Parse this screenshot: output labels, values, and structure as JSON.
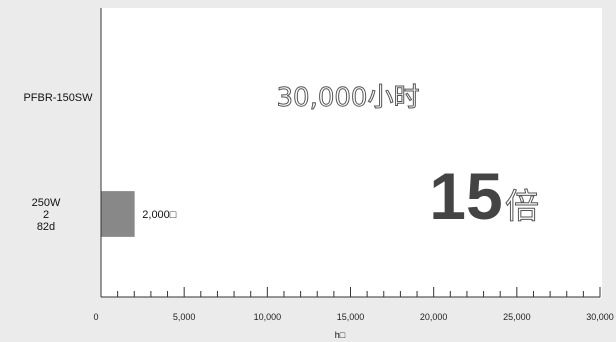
{
  "chart_data": {
    "type": "bar",
    "orientation": "horizontal",
    "categories": [
      [
        "PFBR-150SW"
      ],
      [
        "250W",
        "2",
        "82d"
      ]
    ],
    "values": [
      30000,
      2000
    ],
    "data_labels": [
      "30,000小时",
      "2,000□"
    ],
    "annotation": {
      "number": "15",
      "unit": "倍"
    },
    "xlabel": "h□",
    "xlim": [
      0,
      30000
    ],
    "x_ticks": [
      "0",
      "5,000",
      "10,000",
      "15,000",
      "20,000",
      "25,000",
      "30,000"
    ],
    "grid": false,
    "colors": {
      "background": "#ebebeb",
      "plot": "#ffffff",
      "bar_2": "#888888",
      "axis": "#333333",
      "outline_text": "#555555",
      "big_text": "#444444"
    }
  }
}
